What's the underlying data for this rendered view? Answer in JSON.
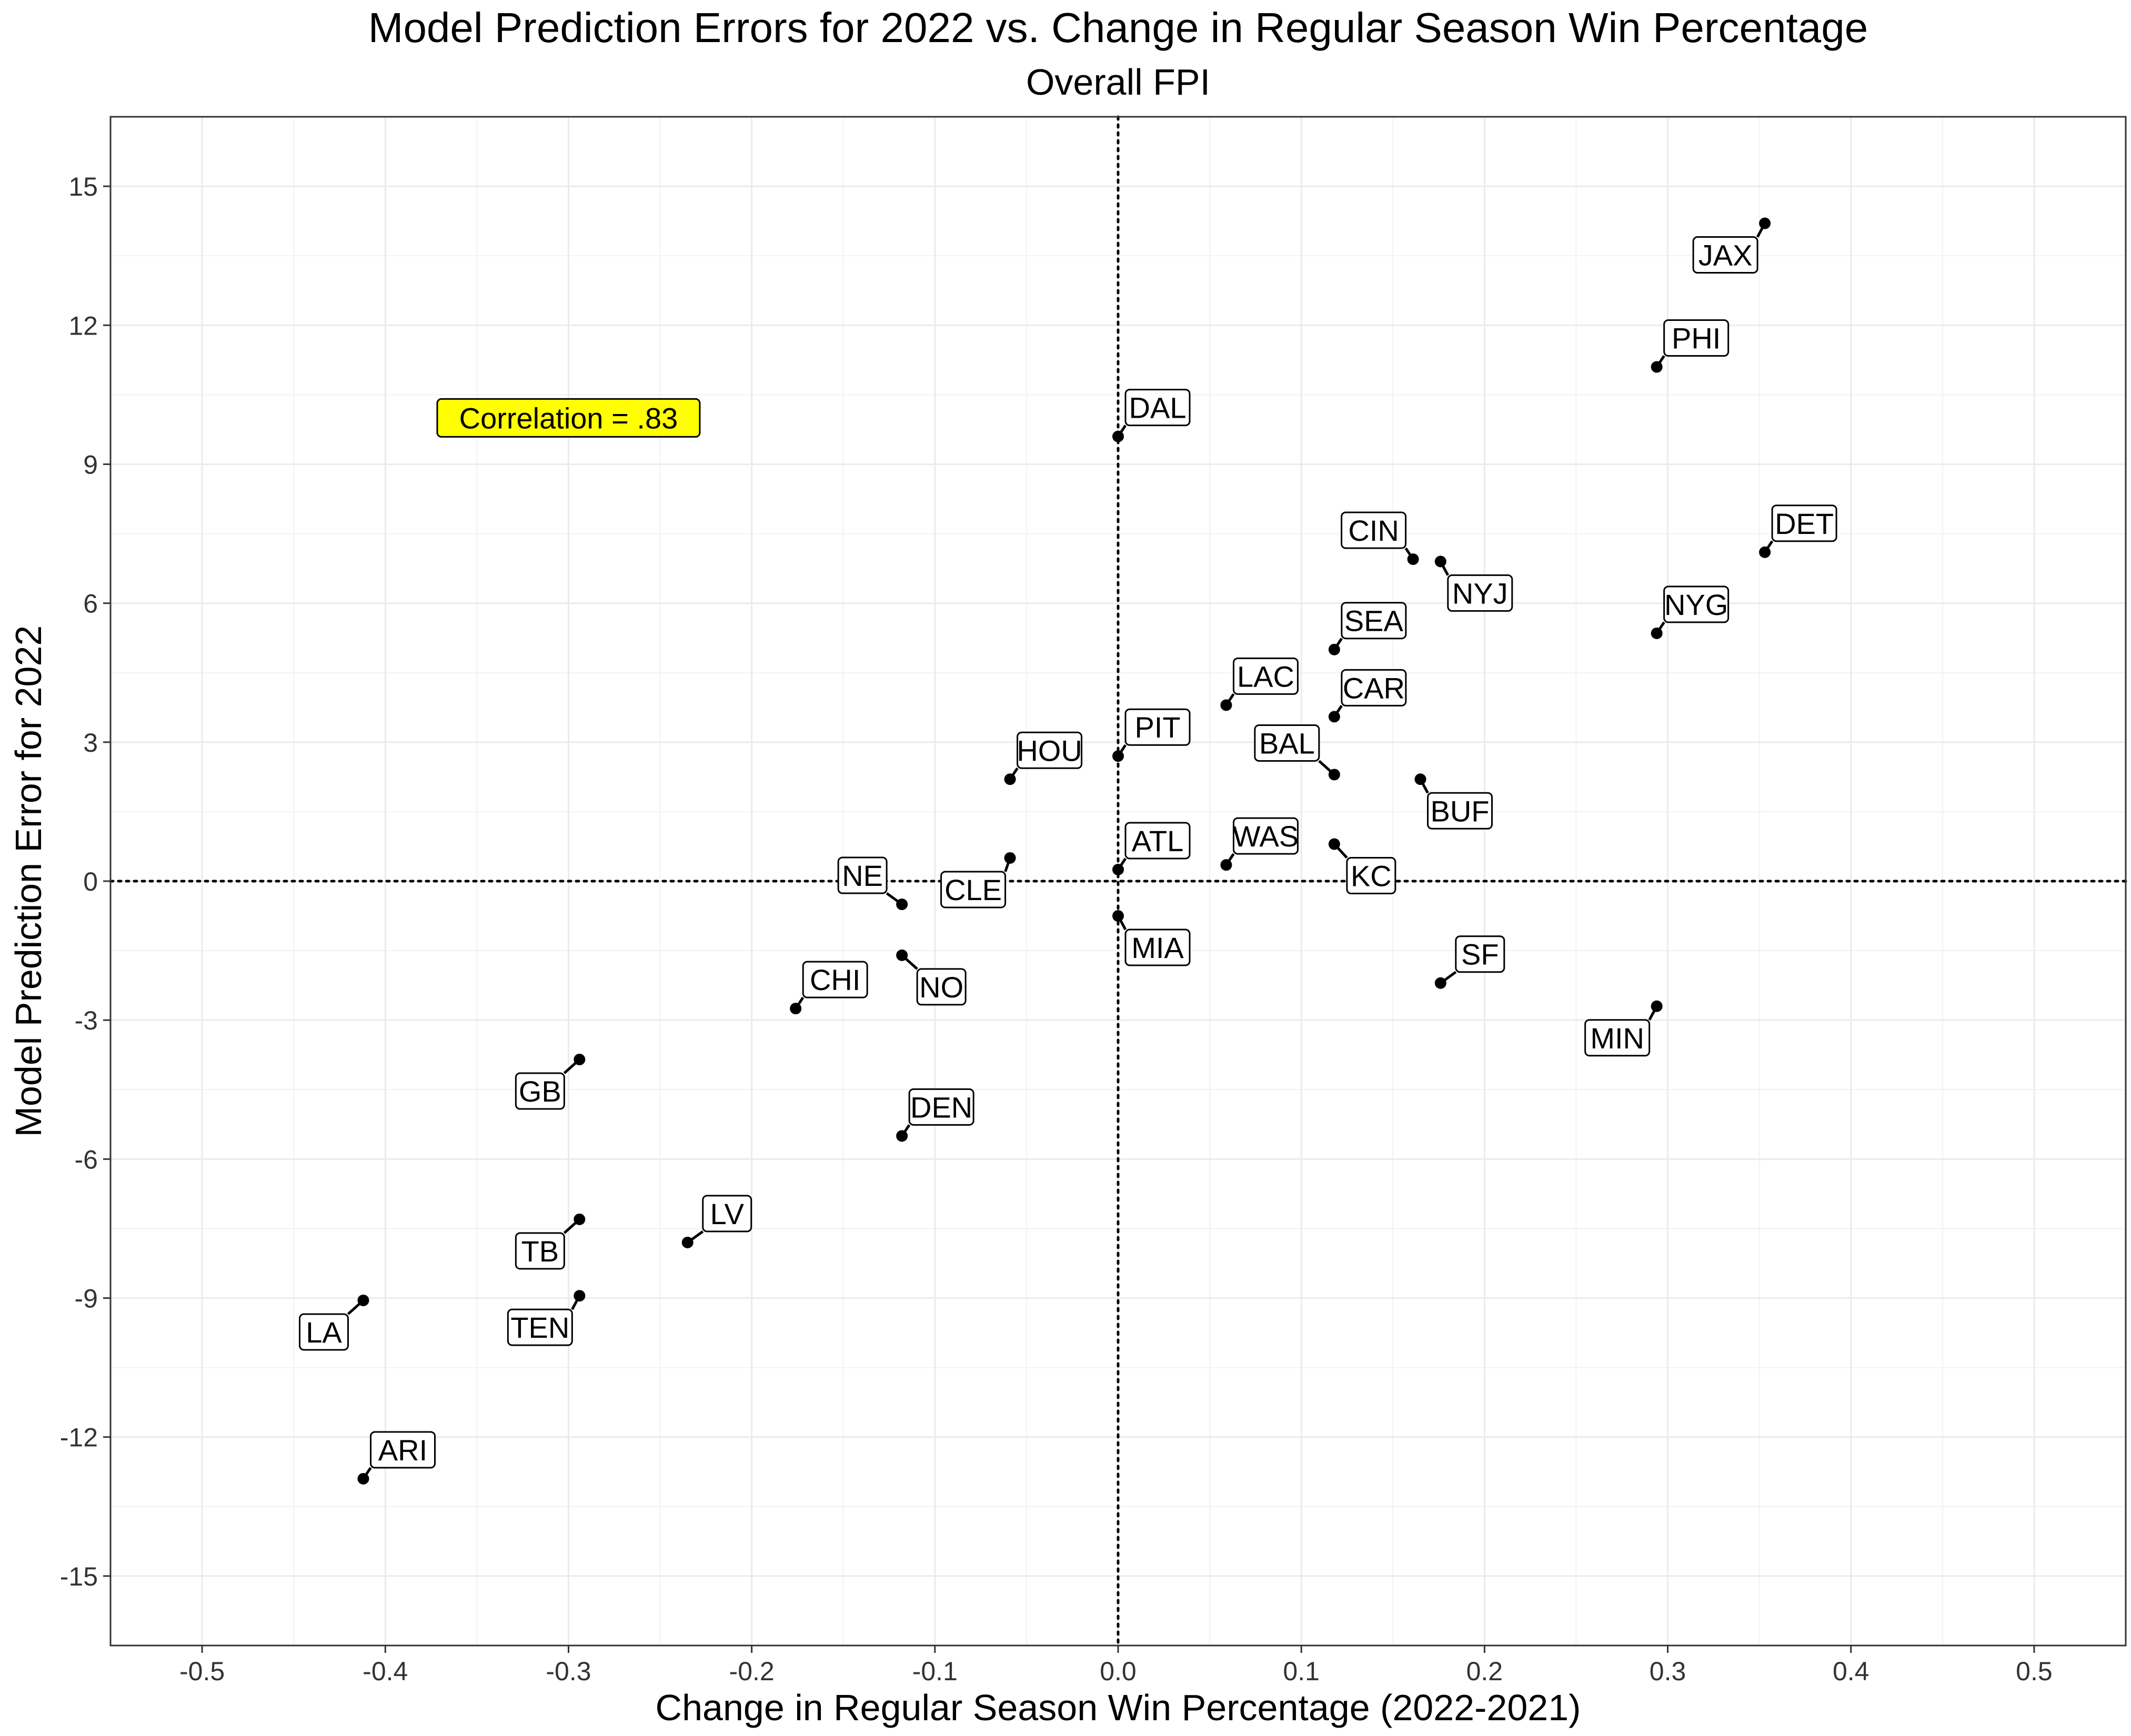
{
  "chart_data": {
    "type": "scatter",
    "title": "Model Prediction Errors for 2022 vs. Change in Regular Season Win Percentage",
    "subtitle": "Overall FPI",
    "xlabel": "Change in Regular Season Win Percentage (2022-2021)",
    "ylabel": "Model Prediction Error for 2022",
    "xlim": [
      -0.55,
      0.55
    ],
    "ylim": [
      -16.5,
      16.5
    ],
    "x_ticks": [
      -0.5,
      -0.4,
      -0.3,
      -0.2,
      -0.1,
      0.0,
      0.1,
      0.2,
      0.3,
      0.4,
      0.5
    ],
    "x_tick_labels": [
      "-0.5",
      "-0.4",
      "-0.3",
      "-0.2",
      "-0.1",
      "0.0",
      "0.1",
      "0.2",
      "0.3",
      "0.4",
      "0.5"
    ],
    "y_ticks": [
      15,
      12,
      9,
      6,
      3,
      0,
      -3,
      -6,
      -9,
      -12,
      -15
    ],
    "y_tick_labels": [
      "15",
      "12",
      "9",
      "6",
      "3",
      "0",
      "-3",
      "-6",
      "-9",
      "-12",
      "-15"
    ],
    "grid": true,
    "reference_lines": {
      "x": 0,
      "y": 0,
      "style": "dotted"
    },
    "annotation": {
      "text": "Correlation = .83",
      "x": -0.3,
      "y": 10.0,
      "color": "#ffff00"
    },
    "points": [
      {
        "team": "JAX",
        "x": 0.353,
        "y": 14.2
      },
      {
        "team": "PHI",
        "x": 0.294,
        "y": 11.1
      },
      {
        "team": "DAL",
        "x": 0.0,
        "y": 9.6
      },
      {
        "team": "DET",
        "x": 0.353,
        "y": 7.1
      },
      {
        "team": "CIN",
        "x": 0.161,
        "y": 6.95
      },
      {
        "team": "NYJ",
        "x": 0.176,
        "y": 6.9
      },
      {
        "team": "NYG",
        "x": 0.294,
        "y": 5.35
      },
      {
        "team": "SEA",
        "x": 0.118,
        "y": 5.0
      },
      {
        "team": "LAC",
        "x": 0.059,
        "y": 3.8
      },
      {
        "team": "CAR",
        "x": 0.118,
        "y": 3.55
      },
      {
        "team": "PIT",
        "x": 0.0,
        "y": 2.7
      },
      {
        "team": "BAL",
        "x": 0.118,
        "y": 2.3
      },
      {
        "team": "HOU",
        "x": -0.059,
        "y": 2.2
      },
      {
        "team": "BUF",
        "x": 0.165,
        "y": 2.2
      },
      {
        "team": "KC",
        "x": 0.118,
        "y": 0.8
      },
      {
        "team": "CLE",
        "x": -0.059,
        "y": 0.5
      },
      {
        "team": "WAS",
        "x": 0.059,
        "y": 0.35
      },
      {
        "team": "ATL",
        "x": 0.0,
        "y": 0.25
      },
      {
        "team": "NE",
        "x": -0.118,
        "y": -0.5
      },
      {
        "team": "MIA",
        "x": 0.0,
        "y": -0.75
      },
      {
        "team": "NO",
        "x": -0.118,
        "y": -1.6
      },
      {
        "team": "SF",
        "x": 0.176,
        "y": -2.2
      },
      {
        "team": "MIN",
        "x": 0.294,
        "y": -2.7
      },
      {
        "team": "CHI",
        "x": -0.176,
        "y": -2.75
      },
      {
        "team": "GB",
        "x": -0.294,
        "y": -3.85
      },
      {
        "team": "DEN",
        "x": -0.118,
        "y": -5.5
      },
      {
        "team": "TB",
        "x": -0.294,
        "y": -7.3
      },
      {
        "team": "LV",
        "x": -0.235,
        "y": -7.8
      },
      {
        "team": "TEN",
        "x": -0.294,
        "y": -8.95
      },
      {
        "team": "LA",
        "x": -0.412,
        "y": -9.05
      },
      {
        "team": "ARI",
        "x": -0.412,
        "y": -12.9
      }
    ]
  }
}
